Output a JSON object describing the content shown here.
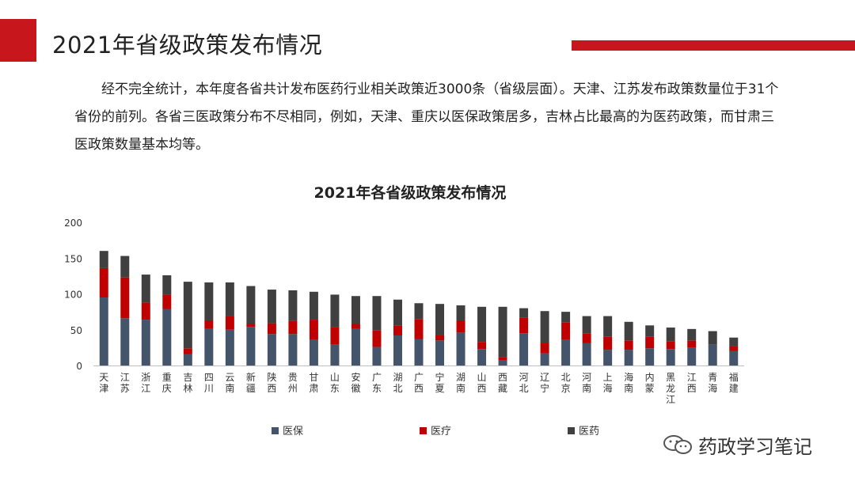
{
  "page": {
    "title": "2021年省级政策发布情况",
    "paragraph": "经不完全统计，本年度各省共计发布医药行业相关政策近3000条（省级层面）。天津、江苏发布政策数量位于31个省份的前列。各省三医政策分布不尽相同，例如，天津、重庆以医保政策居多，吉林占比最高的为医药政策，而甘肃三医政策数量基本均等。",
    "watermark": "药政学习笔记"
  },
  "colors": {
    "accent": "#c8161d",
    "yibao": "#44546a",
    "yiliao": "#c00000",
    "yiyao": "#404040"
  },
  "chart_data": {
    "type": "bar",
    "stacked": true,
    "title": "2021年各省级政策发布情况",
    "ylim": [
      0,
      200
    ],
    "yticks": [
      0,
      50,
      100,
      150,
      200
    ],
    "grid": false,
    "legend_position": "bottom",
    "categories": [
      "天津",
      "江苏",
      "浙江",
      "重庆",
      "吉林",
      "四川",
      "云南",
      "新疆",
      "陕西",
      "贵州",
      "甘肃",
      "山东",
      "安徽",
      "广东",
      "湖北",
      "广西",
      "宁夏",
      "湖南",
      "山西",
      "西藏",
      "河北",
      "辽宁",
      "北京",
      "河南",
      "上海",
      "海南",
      "内蒙",
      "黑龙江",
      "江西",
      "青海",
      "福建"
    ],
    "series": [
      {
        "name": "医保",
        "color": "#44546a",
        "values": [
          95,
          66,
          64,
          79,
          16,
          51,
          50,
          54,
          44,
          44,
          36,
          29,
          51,
          26,
          42,
          37,
          35,
          46,
          23,
          7,
          45,
          17,
          36,
          31,
          22,
          22,
          24,
          23,
          25,
          29,
          20
        ]
      },
      {
        "name": "医疗",
        "color": "#c00000",
        "values": [
          41,
          57,
          24,
          20,
          8,
          12,
          19,
          4,
          15,
          18,
          28,
          25,
          7,
          23,
          14,
          28,
          7,
          17,
          10,
          5,
          22,
          15,
          24,
          14,
          18,
          13,
          16,
          11,
          10,
          0,
          7
        ]
      },
      {
        "name": "医药",
        "color": "#404040",
        "values": [
          24,
          30,
          39,
          27,
          93,
          53,
          47,
          53,
          47,
          43,
          39,
          45,
          39,
          48,
          36,
          22,
          44,
          21,
          49,
          70,
          13,
          44,
          15,
          24,
          29,
          26,
          16,
          19,
          16,
          19,
          12
        ]
      }
    ]
  }
}
